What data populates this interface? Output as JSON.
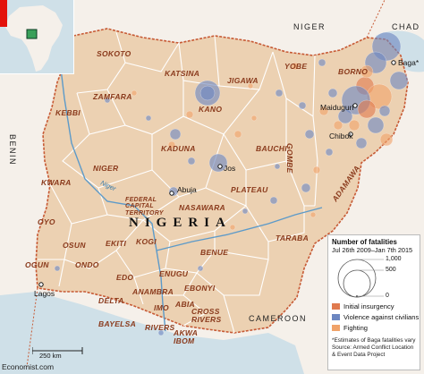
{
  "map": {
    "country_name": "NIGERIA",
    "neighbours": {
      "niger": "NIGER",
      "chad": "CHAD",
      "benin": "BENIN",
      "cameroon": "CAMEROON"
    },
    "river_label": "Niger",
    "states": [
      "SOKOTO",
      "KATSINA",
      "JIGAWA",
      "YOBE",
      "BORNO",
      "ZAMFARA",
      "KANO",
      "KEBBI",
      "KADUNA",
      "BAUCHI",
      "GOMBE",
      "ADAMAWA",
      "NIGER",
      "PLATEAU",
      "KWARA",
      "FEDERAL CAPITAL TERRITORY",
      "NASAWARA",
      "OYO",
      "KOGI",
      "BENUE",
      "TARABA",
      "OGUN",
      "OSUN",
      "EKITI",
      "ONDO",
      "EDO",
      "ENUGU",
      "EBONYI",
      "ANAMBRA",
      "DELTA",
      "IMO",
      "ABIA",
      "CROSS RIVERS",
      "BAYELSA",
      "RIVERS",
      "AKWA IBOM"
    ],
    "cities": [
      "Baga*",
      "Maiduguri",
      "Chibok",
      "Jos",
      "Abuja",
      "Lagos"
    ],
    "scale_label": "250 km",
    "credit": "Economist.com"
  },
  "legend": {
    "title": "Number of fatalities",
    "subtitle": "Jul 26th 2009–Jan 7th 2015",
    "size_scale": [
      "1,000",
      "500",
      "0"
    ],
    "categories": [
      {
        "name": "Initial insurgency",
        "color": "#e07a4f"
      },
      {
        "name": "Violence against civilians",
        "color": "#6d87c1"
      },
      {
        "name": "Fighting",
        "color": "#f0a36a"
      }
    ],
    "notes": [
      "*Estimates of Baga fatalities vary",
      "Source: Armed Conflict Location",
      "& Event Data Project"
    ]
  },
  "colors": {
    "land": "#ecd1b2",
    "neighbour_land": "#f5f0ea",
    "water": "#cfe0e8",
    "state_border": "#ffffff",
    "national_border": "#c75a35",
    "river": "#5c9ac9",
    "accent": "#e3120b"
  }
}
